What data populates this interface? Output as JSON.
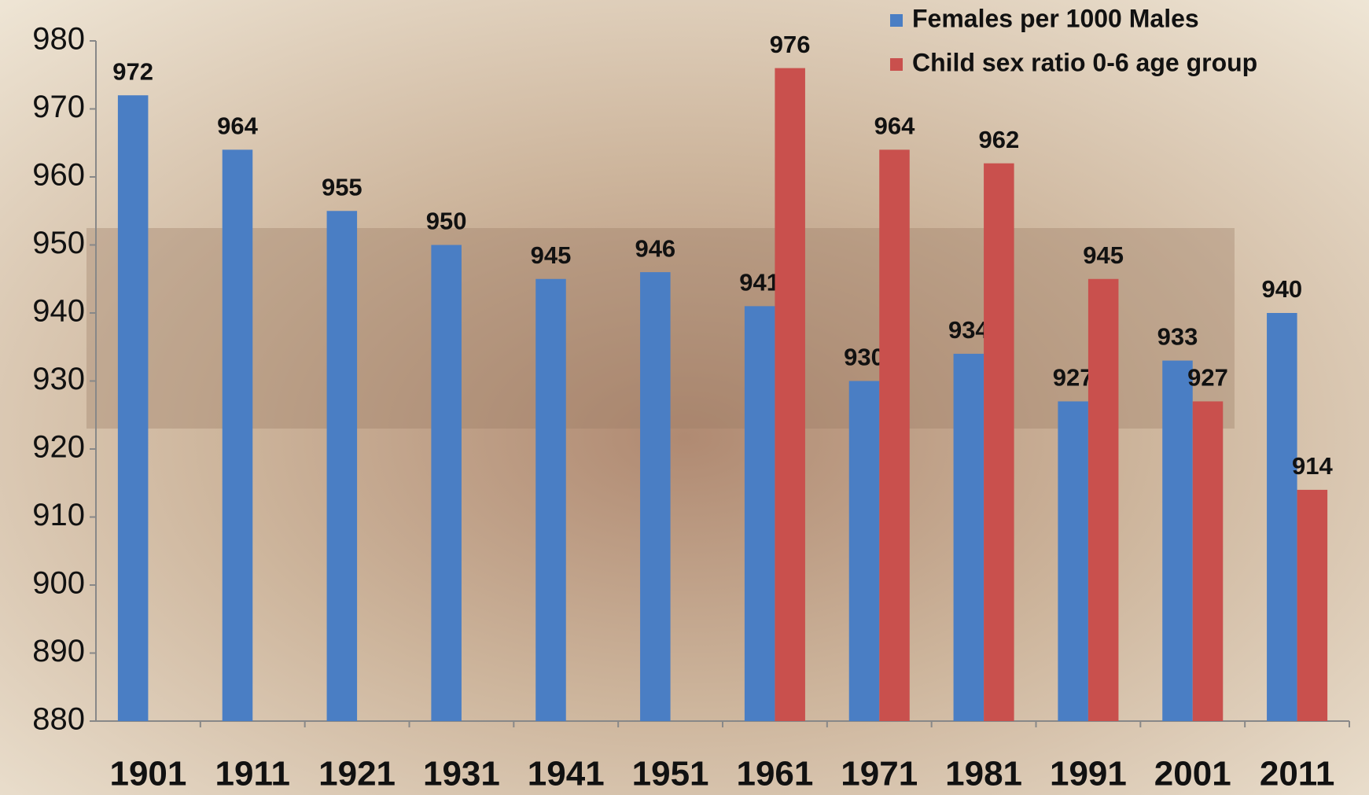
{
  "chart_data": {
    "type": "bar",
    "categories": [
      "1901",
      "1911",
      "1921",
      "1931",
      "1941",
      "1951",
      "1961",
      "1971",
      "1981",
      "1991",
      "2001",
      "2011"
    ],
    "series": [
      {
        "name": "Females per 1000 Males",
        "color": "#4a7ec4",
        "values": [
          972,
          964,
          955,
          950,
          945,
          946,
          941,
          930,
          934,
          927,
          933,
          940
        ]
      },
      {
        "name": "Child sex ratio 0-6 age group",
        "color": "#c9504d",
        "values": [
          null,
          null,
          null,
          null,
          null,
          null,
          976,
          964,
          962,
          945,
          927,
          914
        ]
      }
    ],
    "ylim": [
      880,
      980
    ],
    "yticks": [
      880,
      890,
      900,
      910,
      920,
      930,
      940,
      950,
      960,
      970,
      980
    ],
    "legend": "top-right"
  }
}
